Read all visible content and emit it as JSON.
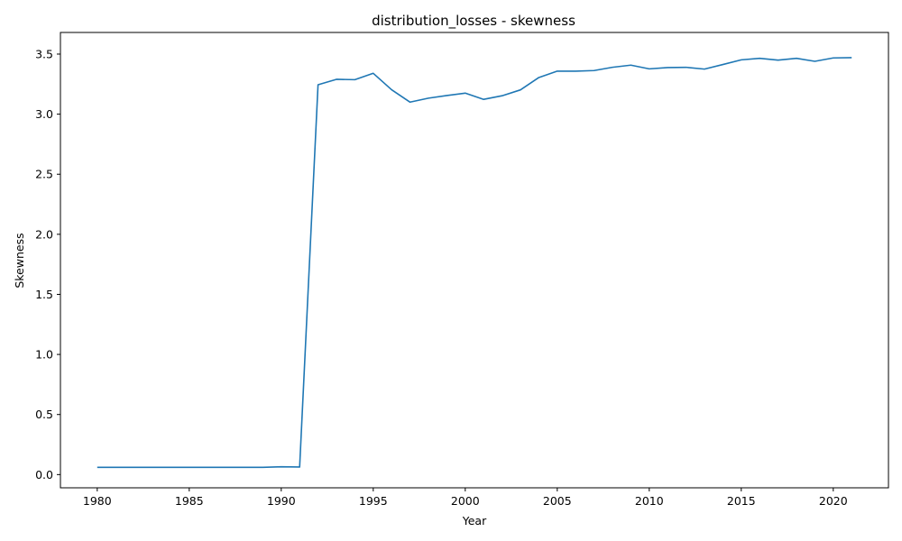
{
  "chart_data": {
    "type": "line",
    "title": "distribution_losses - skewness",
    "xlabel": "Year",
    "ylabel": "Skewness",
    "xlim": [
      1978,
      2023
    ],
    "ylim": [
      -0.11,
      3.68
    ],
    "x_ticks": [
      1980,
      1985,
      1990,
      1995,
      2000,
      2005,
      2010,
      2015,
      2020
    ],
    "y_ticks": [
      "0.0",
      "0.5",
      "1.0",
      "1.5",
      "2.0",
      "2.5",
      "3.0",
      "3.5"
    ],
    "grid": false,
    "line_color": "#1f77b4",
    "series": [
      {
        "x": [
          1980,
          1981,
          1982,
          1983,
          1984,
          1985,
          1986,
          1987,
          1988,
          1989,
          1990,
          1991,
          1992,
          1993,
          1994,
          1995,
          1996,
          1997,
          1998,
          1999,
          2000,
          2001,
          2002,
          2003,
          2004,
          2005,
          2006,
          2007,
          2008,
          2009,
          2010,
          2011,
          2012,
          2013,
          2014,
          2015,
          2016,
          2017,
          2018,
          2019,
          2020,
          2021
        ],
        "values": [
          0.06,
          0.06,
          0.06,
          0.06,
          0.06,
          0.06,
          0.06,
          0.06,
          0.06,
          0.06,
          0.065,
          0.063,
          3.245,
          3.29,
          3.287,
          3.34,
          3.203,
          3.1,
          3.133,
          3.155,
          3.175,
          3.123,
          3.153,
          3.202,
          3.305,
          3.358,
          3.358,
          3.363,
          3.39,
          3.408,
          3.377,
          3.388,
          3.39,
          3.375,
          3.413,
          3.452,
          3.465,
          3.45,
          3.465,
          3.44,
          3.468,
          3.47
        ]
      }
    ]
  }
}
